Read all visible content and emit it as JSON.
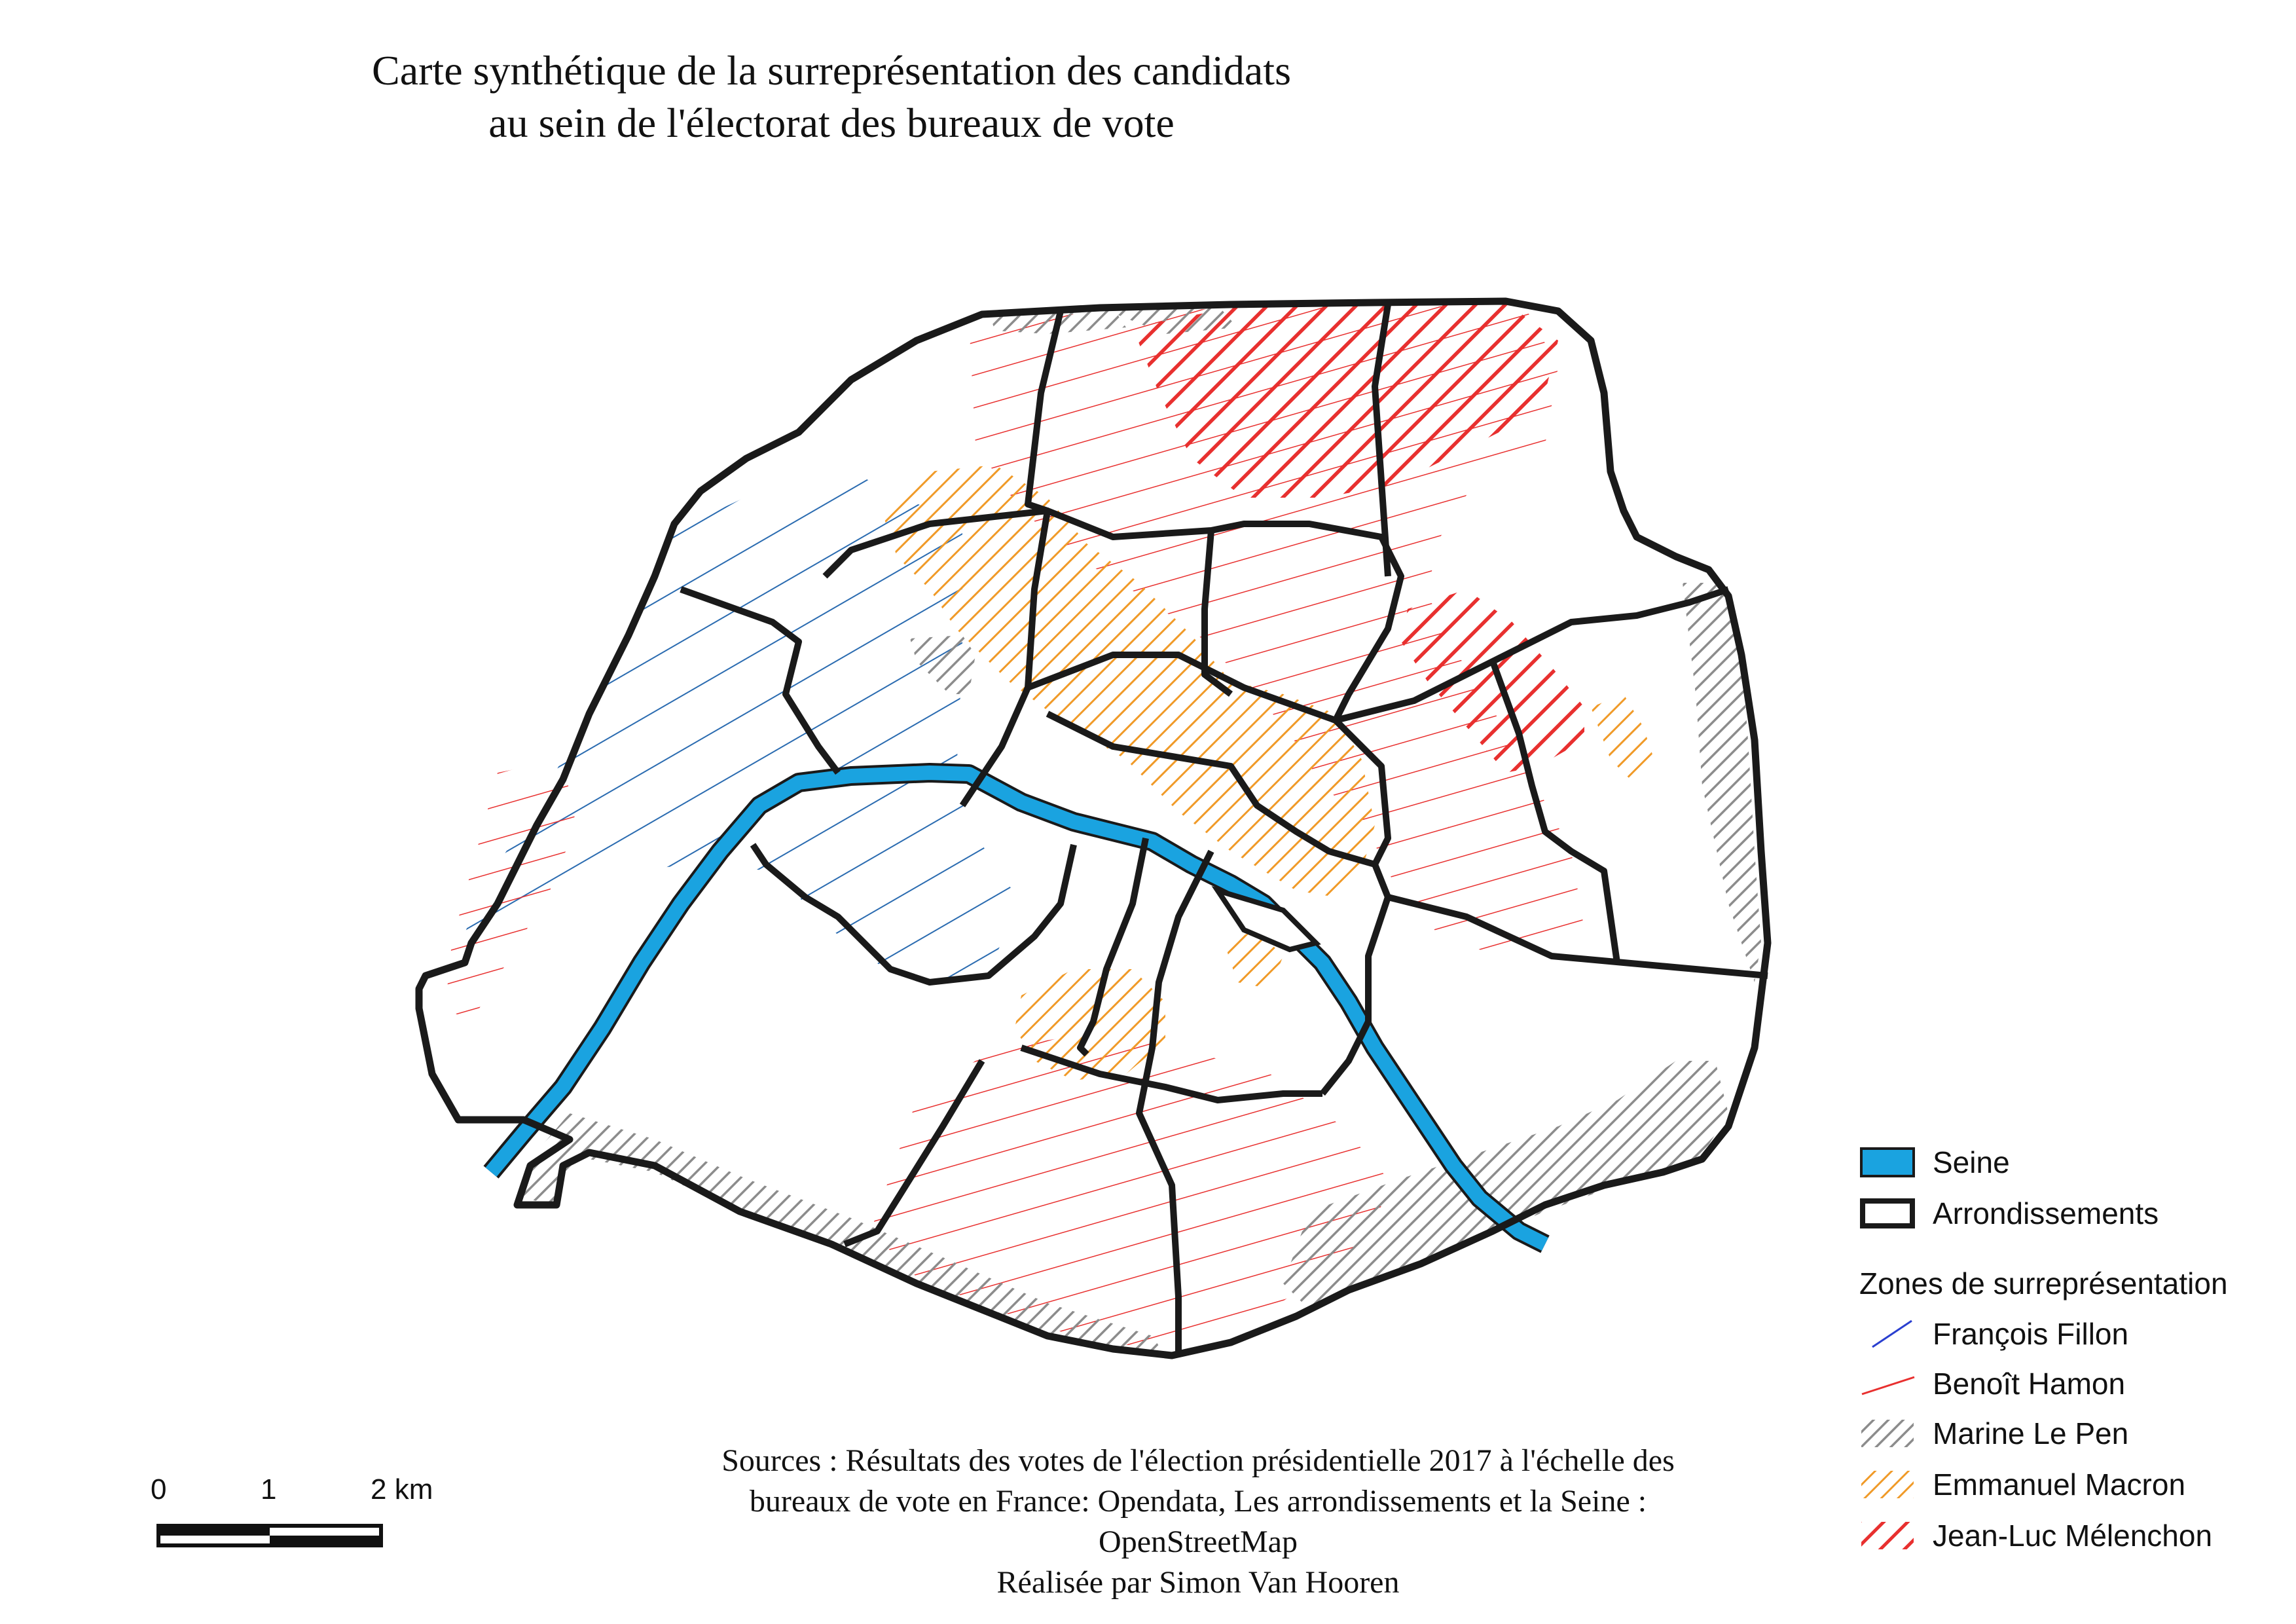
{
  "title": {
    "line1": "Carte synthétique de la surreprésentation des candidats",
    "line2": "au sein de l'électorat des bureaux de vote"
  },
  "legend": {
    "seine": "Seine",
    "arrondissements": "Arrondissements",
    "zones_heading": "Zones de surreprésentation",
    "fillon": "François Fillon",
    "hamon": "Benoît Hamon",
    "le_pen": "Marine Le Pen",
    "macron": "Emmanuel Macron",
    "melenchon": "Jean-Luc Mélenchon"
  },
  "colors": {
    "seine": "#1aa3e0",
    "fillon": "#2a6bb0",
    "hamon": "#e8302f",
    "le_pen": "#8c8c8c",
    "macron": "#f09a28",
    "melenchon": "#e8302f",
    "borders": "#1a1a1a"
  },
  "sources": {
    "line1": "Sources : Résultats des votes de l'élection présidentielle 2017 à l'échelle des",
    "line2": "bureaux de vote en France: Opendata, Les arrondissements et la Seine :",
    "line3": "OpenStreetMap",
    "line4": "Réalisée par Simon Van Hooren"
  },
  "scale_bar": {
    "label_0": "0",
    "label_1": "1",
    "label_2": "2 km"
  }
}
